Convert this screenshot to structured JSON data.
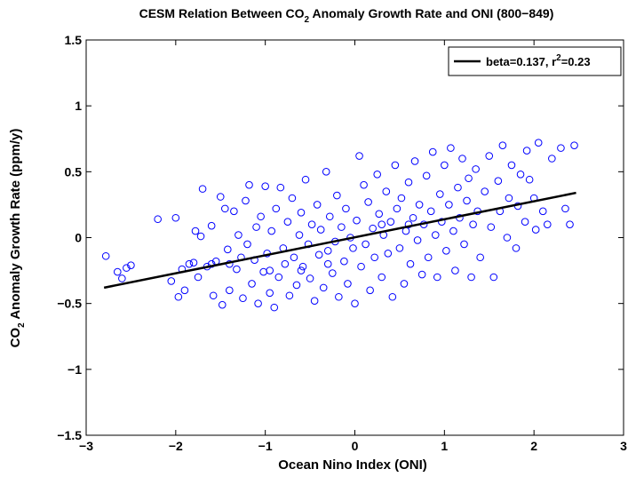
{
  "chart_data": {
    "type": "scatter",
    "title": [
      "CESM Relation Between CO",
      "2",
      " Anomaly Growth Rate and ONI (800−849)"
    ],
    "x_label": "Ocean Nino Index (ONI)",
    "y_label": [
      "CO",
      "2",
      " Anomaly Growth Rate (ppm/y)"
    ],
    "xlim": [
      -3,
      3
    ],
    "ylim": [
      -1.5,
      1.5
    ],
    "xticks": [
      {
        "value": -3,
        "label": "−3"
      },
      {
        "value": -2,
        "label": "−2"
      },
      {
        "value": -1,
        "label": "−1"
      },
      0,
      1,
      2,
      3
    ],
    "yticks": [
      {
        "value": -1.5,
        "label": "−1.5"
      },
      {
        "value": -1,
        "label": "−1"
      },
      {
        "value": -0.5,
        "label": "−0.5"
      },
      0,
      0.5,
      1,
      1.5
    ],
    "grid": false,
    "legend": "upper right",
    "series": [
      {
        "kind": "points",
        "color": "#0000ff",
        "x": [
          -2.78,
          -2.65,
          -2.6,
          -2.55,
          -2.5,
          -2.2,
          -2.05,
          -2.0,
          -1.97,
          -1.93,
          -1.9,
          -1.85,
          -1.8,
          -1.78,
          -1.75,
          -1.72,
          -1.7,
          -1.65,
          -1.6,
          -1.58,
          -1.55,
          -1.5,
          -1.48,
          -1.45,
          -1.42,
          -1.4,
          -1.35,
          -1.32,
          -1.3,
          -1.27,
          -1.25,
          -1.22,
          -1.2,
          -1.18,
          -1.15,
          -1.12,
          -1.1,
          -1.08,
          -1.05,
          -1.02,
          -1.0,
          -0.98,
          -0.95,
          -0.93,
          -0.9,
          -0.88,
          -0.85,
          -0.83,
          -0.8,
          -0.78,
          -0.75,
          -0.73,
          -0.7,
          -0.68,
          -0.65,
          -0.62,
          -0.6,
          -0.58,
          -0.55,
          -0.52,
          -0.5,
          -0.48,
          -0.45,
          -0.42,
          -0.4,
          -0.38,
          -0.35,
          -0.32,
          -0.3,
          -0.28,
          -0.25,
          -0.22,
          -0.2,
          -0.18,
          -0.15,
          -0.12,
          -0.1,
          -0.08,
          -0.05,
          -0.02,
          0.0,
          0.02,
          0.05,
          0.07,
          0.1,
          0.12,
          0.15,
          0.17,
          0.2,
          0.22,
          0.25,
          0.27,
          0.3,
          0.32,
          0.35,
          0.37,
          0.4,
          0.42,
          0.45,
          0.47,
          0.5,
          0.52,
          0.55,
          0.57,
          0.6,
          0.62,
          0.65,
          0.67,
          0.7,
          0.72,
          0.75,
          0.77,
          0.8,
          0.82,
          0.85,
          0.87,
          0.9,
          0.92,
          0.95,
          0.97,
          1.0,
          1.02,
          1.05,
          1.07,
          1.1,
          1.12,
          1.15,
          1.17,
          1.2,
          1.22,
          1.25,
          1.27,
          1.3,
          1.32,
          1.35,
          1.37,
          1.4,
          1.45,
          1.5,
          1.52,
          1.55,
          1.6,
          1.62,
          1.65,
          1.7,
          1.72,
          1.75,
          1.8,
          1.82,
          1.85,
          1.9,
          1.92,
          1.95,
          2.0,
          2.02,
          2.05,
          2.1,
          2.15,
          2.2,
          2.3,
          2.35,
          2.4,
          2.45,
          -0.95,
          -0.6,
          -0.3,
          0.3,
          0.6,
          -1.4,
          -1.6
        ],
        "values": [
          -0.14,
          -0.26,
          -0.31,
          -0.23,
          -0.21,
          0.14,
          -0.33,
          0.15,
          -0.45,
          -0.24,
          -0.4,
          -0.2,
          -0.19,
          0.05,
          -0.3,
          0.01,
          0.37,
          -0.22,
          0.09,
          -0.44,
          -0.18,
          0.31,
          -0.51,
          0.22,
          -0.09,
          -0.4,
          0.2,
          -0.24,
          0.02,
          -0.15,
          -0.46,
          0.28,
          -0.05,
          0.4,
          -0.35,
          -0.17,
          0.08,
          -0.5,
          0.16,
          -0.26,
          0.39,
          -0.12,
          -0.42,
          0.05,
          -0.53,
          0.22,
          -0.3,
          0.38,
          -0.08,
          -0.2,
          0.12,
          -0.44,
          0.3,
          -0.15,
          -0.36,
          0.02,
          0.19,
          -0.22,
          0.44,
          -0.05,
          -0.31,
          0.1,
          -0.48,
          0.25,
          -0.13,
          0.06,
          -0.38,
          0.5,
          -0.1,
          0.16,
          -0.27,
          -0.03,
          0.32,
          -0.45,
          0.08,
          -0.18,
          0.22,
          -0.35,
          0.0,
          -0.08,
          -0.5,
          0.13,
          0.62,
          -0.22,
          0.4,
          -0.05,
          0.27,
          -0.4,
          0.07,
          -0.15,
          0.48,
          0.18,
          -0.3,
          0.02,
          0.35,
          -0.12,
          0.12,
          -0.45,
          0.55,
          0.22,
          -0.08,
          0.3,
          -0.35,
          0.05,
          0.42,
          -0.2,
          0.15,
          0.58,
          -0.02,
          0.25,
          -0.28,
          0.1,
          0.47,
          -0.15,
          0.2,
          0.65,
          0.02,
          -0.3,
          0.33,
          0.12,
          0.55,
          -0.1,
          0.25,
          0.68,
          0.05,
          -0.25,
          0.38,
          0.15,
          0.6,
          -0.05,
          0.28,
          0.45,
          -0.3,
          0.1,
          0.52,
          0.2,
          -0.15,
          0.35,
          0.62,
          0.08,
          -0.3,
          0.43,
          0.2,
          0.7,
          0.0,
          0.3,
          0.55,
          -0.08,
          0.24,
          0.48,
          0.12,
          0.66,
          0.44,
          0.3,
          0.06,
          0.72,
          0.2,
          0.1,
          0.6,
          0.68,
          0.22,
          0.1,
          0.7,
          -0.25,
          -0.25,
          -0.2,
          0.1,
          0.1,
          -0.2,
          -0.2
        ]
      },
      {
        "kind": "line",
        "color": "#000000",
        "name": [
          "beta=0.137, r",
          "2",
          "=0.23"
        ],
        "x": [
          -2.8,
          2.47
        ],
        "values": [
          -0.38,
          0.34
        ]
      }
    ]
  }
}
